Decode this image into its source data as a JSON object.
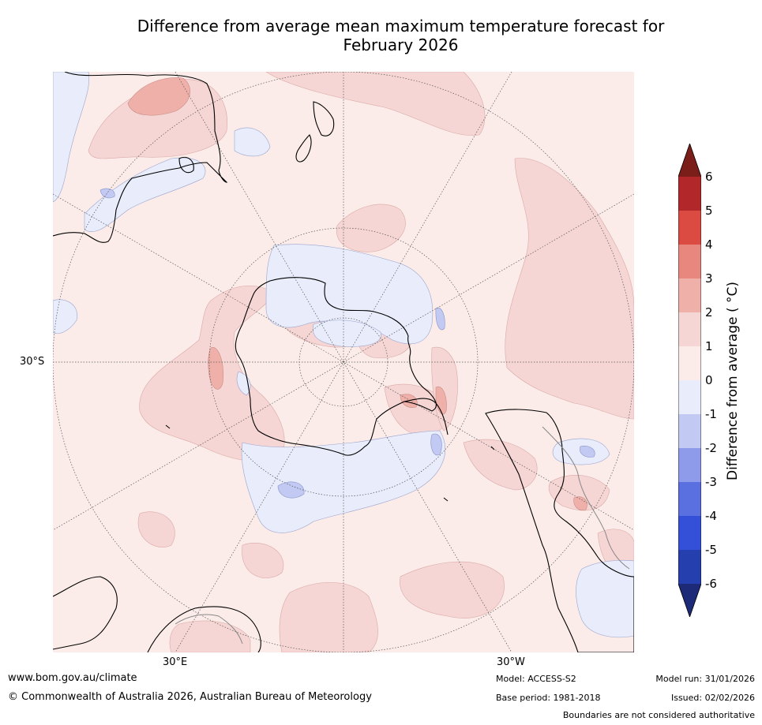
{
  "title": {
    "line1": "Difference from average mean maximum temperature forecast for",
    "line2": "February 2026"
  },
  "axes": {
    "lat_label": "30°S",
    "lon_left": "30°E",
    "lon_right": "30°W"
  },
  "colorbar": {
    "label": "Difference from average ( °C)",
    "ticks": [
      "6",
      "5",
      "4",
      "3",
      "2",
      "1",
      "0",
      "-1",
      "-2",
      "-3",
      "-4",
      "-5",
      "-6"
    ],
    "colors": {
      "over": "#7b1e19",
      "c5_6": "#b2282a",
      "c4_5": "#dc4b41",
      "c3_4": "#e8877e",
      "c2_3": "#efb0aa",
      "c1_2": "#f5d6d4",
      "c0_1": "#fbece9",
      "cm1_0": "#e8ecfb",
      "cm2_m1": "#c2c9f2",
      "cm3_m2": "#8e9bea",
      "cm4_m3": "#5a6fe0",
      "cm5_m4": "#3450d9",
      "cm6_m5": "#263fae",
      "under": "#1c2a78"
    }
  },
  "footer": {
    "url": "www.bom.gov.au/climate",
    "copyright": "© Commonwealth of Australia 2026, Australian Bureau of Meteorology",
    "model": "Model: ACCESS-S2",
    "base_period": "Base period: 1981-2018",
    "model_run": "Model run: 31/01/2026",
    "issued": "Issued: 02/02/2026",
    "disclaimer": "Boundaries are not considered authoritative"
  }
}
